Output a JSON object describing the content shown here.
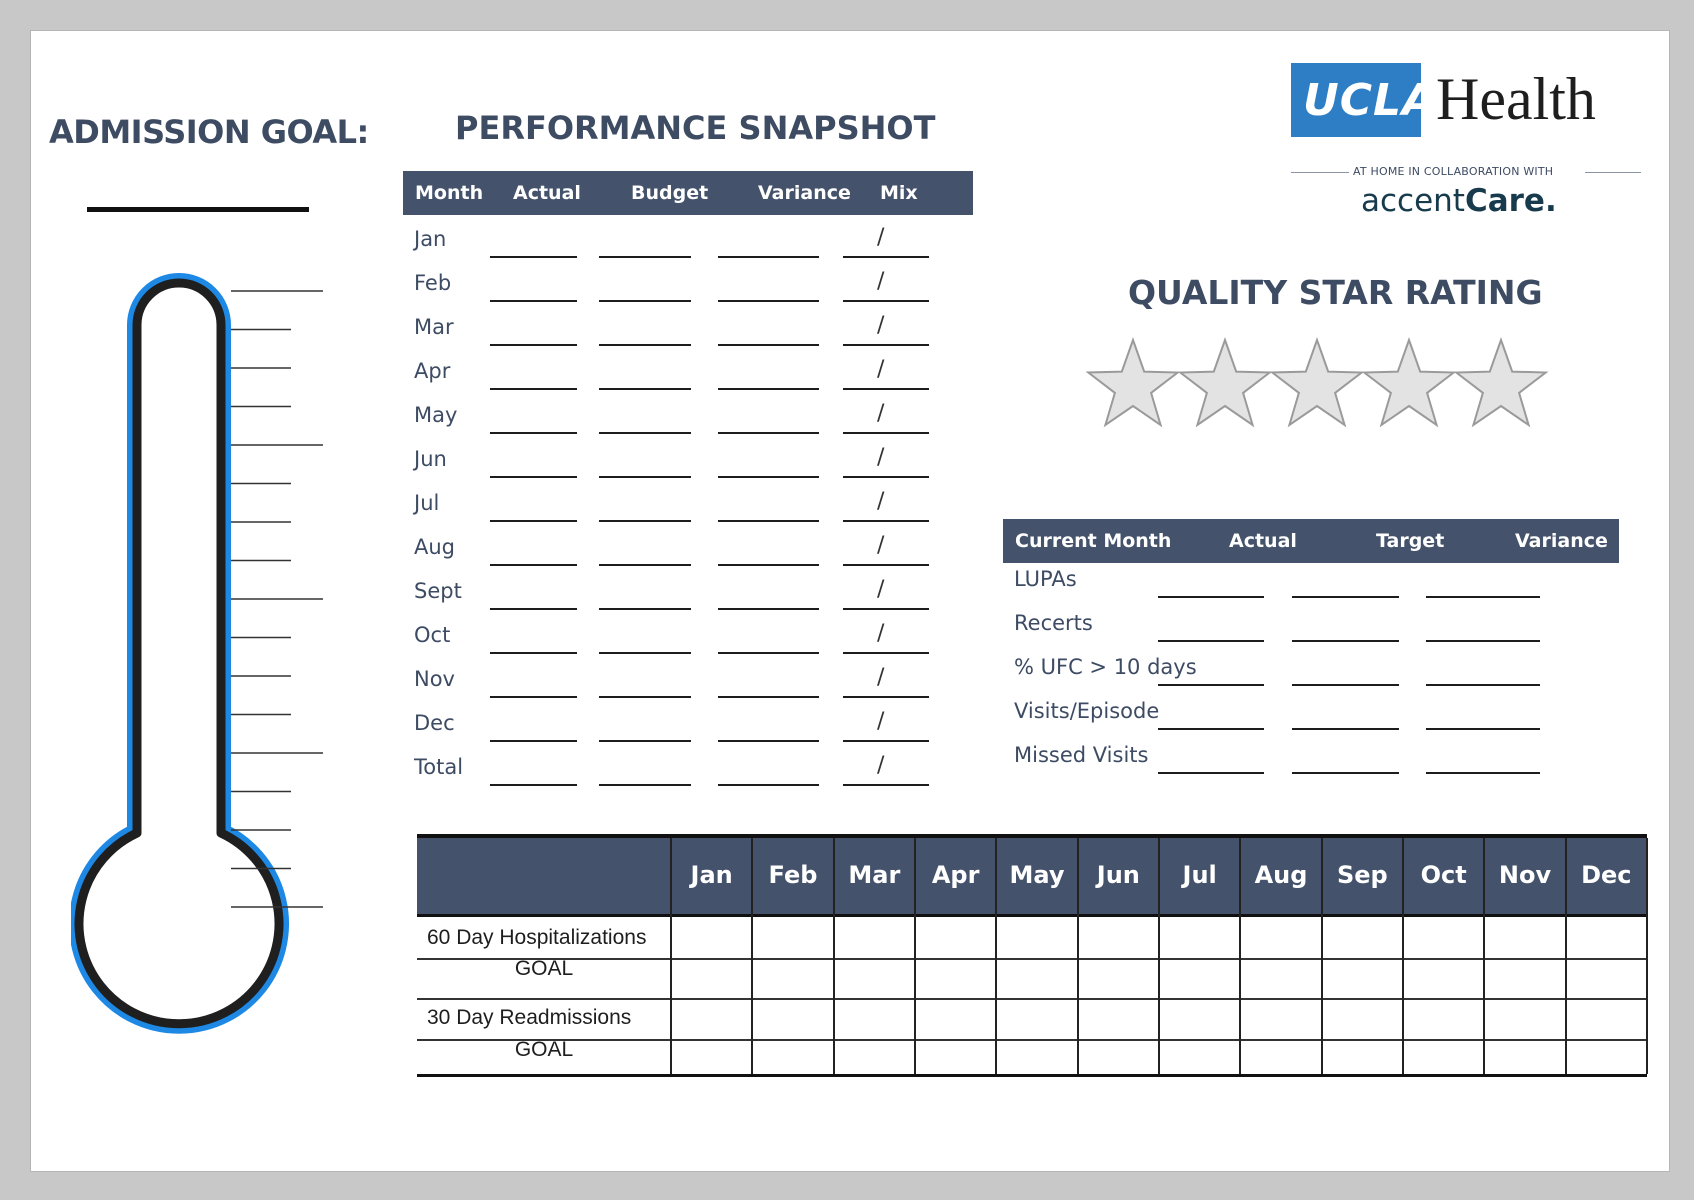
{
  "admission": {
    "title": "ADMISSION GOAL:"
  },
  "performance": {
    "title": "PERFORMANCE SNAPSHOT",
    "columns": [
      "Month",
      "Actual",
      "Budget",
      "Variance",
      "Mix"
    ],
    "rows": [
      "Jan",
      "Feb",
      "Mar",
      "Apr",
      "May",
      "Jun",
      "Jul",
      "Aug",
      "Sept",
      "Oct",
      "Nov",
      "Dec",
      "Total"
    ],
    "mix_symbol": "/"
  },
  "logo": {
    "ucla": "UCLA",
    "health": "Health",
    "tagline": "AT HOME IN COLLABORATION WITH",
    "partner_light": "accent",
    "partner_bold": "Care"
  },
  "quality": {
    "title": "QUALITY STAR RATING",
    "star_count": 5,
    "columns": [
      "Current Month",
      "Actual",
      "Target",
      "Variance"
    ],
    "rows": [
      "LUPAs",
      "Recerts",
      "% UFC > 10 days",
      "Visits/Episode",
      "Missed Visits"
    ]
  },
  "hospital": {
    "months": [
      "Jan",
      "Feb",
      "Mar",
      "Apr",
      "May",
      "Jun",
      "Jul",
      "Aug",
      "Sep",
      "Oct",
      "Nov",
      "Dec"
    ],
    "rows": [
      {
        "label": "60 Day Hospitalizations",
        "goal": "GOAL"
      },
      {
        "label": "30 Day Readmissions",
        "goal": "GOAL"
      }
    ]
  },
  "colors": {
    "header": "#44536b",
    "title": "#3d4b63",
    "ucla_blue": "#2d7ec4",
    "thermo_blue": "#1e88e5"
  }
}
